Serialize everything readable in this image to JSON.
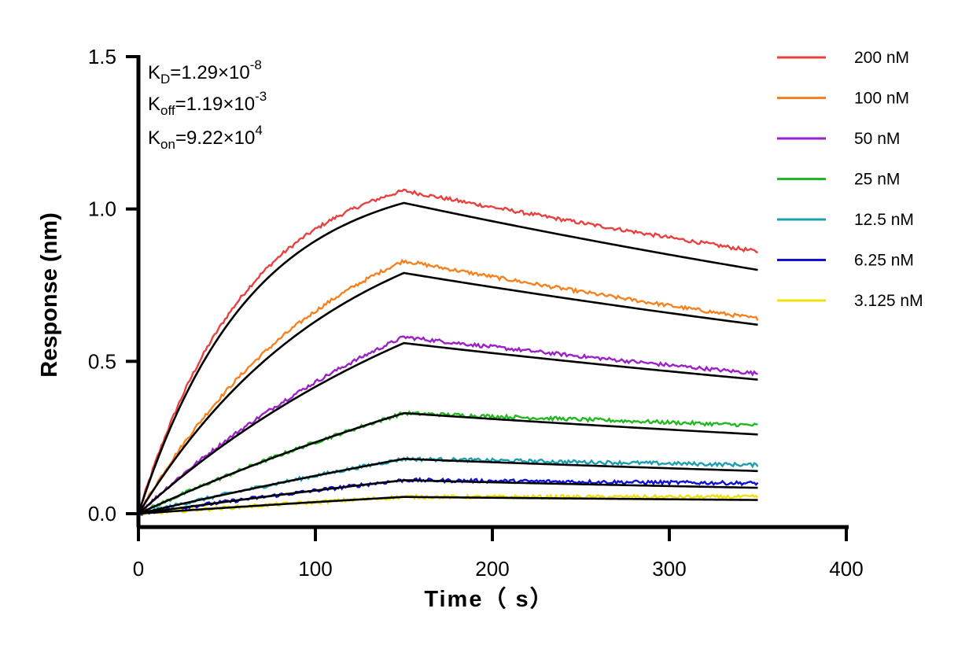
{
  "chart_data": {
    "type": "line",
    "xlabel": "Time（ s）",
    "ylabel": "Response (nm)",
    "xlim": [
      0,
      400
    ],
    "ylim": [
      0,
      1.5
    ],
    "x_ticks": [
      "0",
      "100",
      "200",
      "300",
      "400"
    ],
    "y_ticks": [
      "0.0",
      "0.5",
      "1.0",
      "1.5"
    ],
    "grid": false,
    "legend_position": "top-right",
    "association_end": 150,
    "dissociation_end": 350,
    "annotations": {
      "kd": {
        "label": "K",
        "sub": "D",
        "value": "=1.29×10",
        "exp": "-8"
      },
      "koff": {
        "label": "K",
        "sub": "off",
        "value": "=1.19×10",
        "exp": "-3"
      },
      "kon": {
        "label": "K",
        "sub": "on",
        "value": "=9.22×10",
        "exp": "4"
      }
    },
    "fit_color": "#000000",
    "series": [
      {
        "name": "200 nM",
        "color": "#e8413f",
        "observed": {
          "peak": 1.06,
          "end": 0.86
        },
        "fit": {
          "peak": 1.02,
          "end": 0.8
        }
      },
      {
        "name": "100 nM",
        "color": "#f5821f",
        "observed": {
          "peak": 0.83,
          "end": 0.64
        },
        "fit": {
          "peak": 0.79,
          "end": 0.62
        }
      },
      {
        "name": "50 nM",
        "color": "#9b22c7",
        "observed": {
          "peak": 0.58,
          "end": 0.46
        },
        "fit": {
          "peak": 0.56,
          "end": 0.44
        }
      },
      {
        "name": "25 nM",
        "color": "#22b822",
        "observed": {
          "peak": 0.33,
          "end": 0.29
        },
        "fit": {
          "peak": 0.33,
          "end": 0.26
        }
      },
      {
        "name": "12.5 nM",
        "color": "#1d9fb3",
        "observed": {
          "peak": 0.18,
          "end": 0.16
        },
        "fit": {
          "peak": 0.18,
          "end": 0.14
        }
      },
      {
        "name": "6.25 nM",
        "color": "#1010d8",
        "observed": {
          "peak": 0.11,
          "end": 0.1
        },
        "fit": {
          "peak": 0.11,
          "end": 0.085
        }
      },
      {
        "name": "3.125 nM",
        "color": "#f0e010",
        "observed": {
          "peak": 0.055,
          "end": 0.055
        },
        "fit": {
          "peak": 0.055,
          "end": 0.045
        }
      }
    ]
  }
}
